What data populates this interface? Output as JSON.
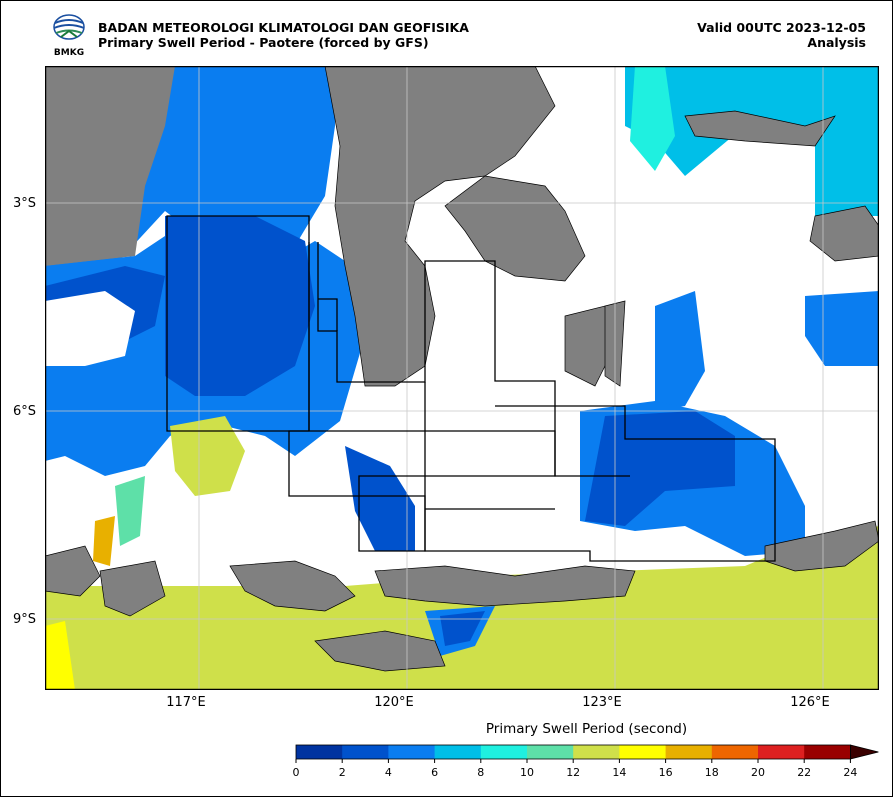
{
  "header": {
    "org_name": "BADAN METEOROLOGI KLIMATOLOGI DAN GEOFISIKA",
    "product_title": "Primary Swell Period - Paotere (forced by GFS)",
    "valid_time": "Valid 00UTC 2023-12-05",
    "run_type": "Analysis",
    "logo_text": "BMKG"
  },
  "map": {
    "lat_labels": [
      "3°S",
      "6°S",
      "9°S"
    ],
    "lon_labels": [
      "117°E",
      "120°E",
      "123°E",
      "126°E"
    ],
    "colors": {
      "land": "#808080",
      "no_data": "#ffffff",
      "gridline": "#c8c8c8",
      "boundary": "#000000"
    }
  },
  "colorbar": {
    "title": "Primary Swell Period (second)",
    "ticks": [
      "0",
      "2",
      "4",
      "6",
      "8",
      "10",
      "12",
      "14",
      "16",
      "18",
      "20",
      "22",
      "24"
    ],
    "colors": [
      "#0033a0",
      "#0052cc",
      "#0a7df0",
      "#00bfe8",
      "#1ff0e0",
      "#5ee0a8",
      "#cfe04a",
      "#ffff00",
      "#e8b000",
      "#ee6600",
      "#dd2020",
      "#990000"
    ],
    "extend_color": "#3a0000"
  }
}
